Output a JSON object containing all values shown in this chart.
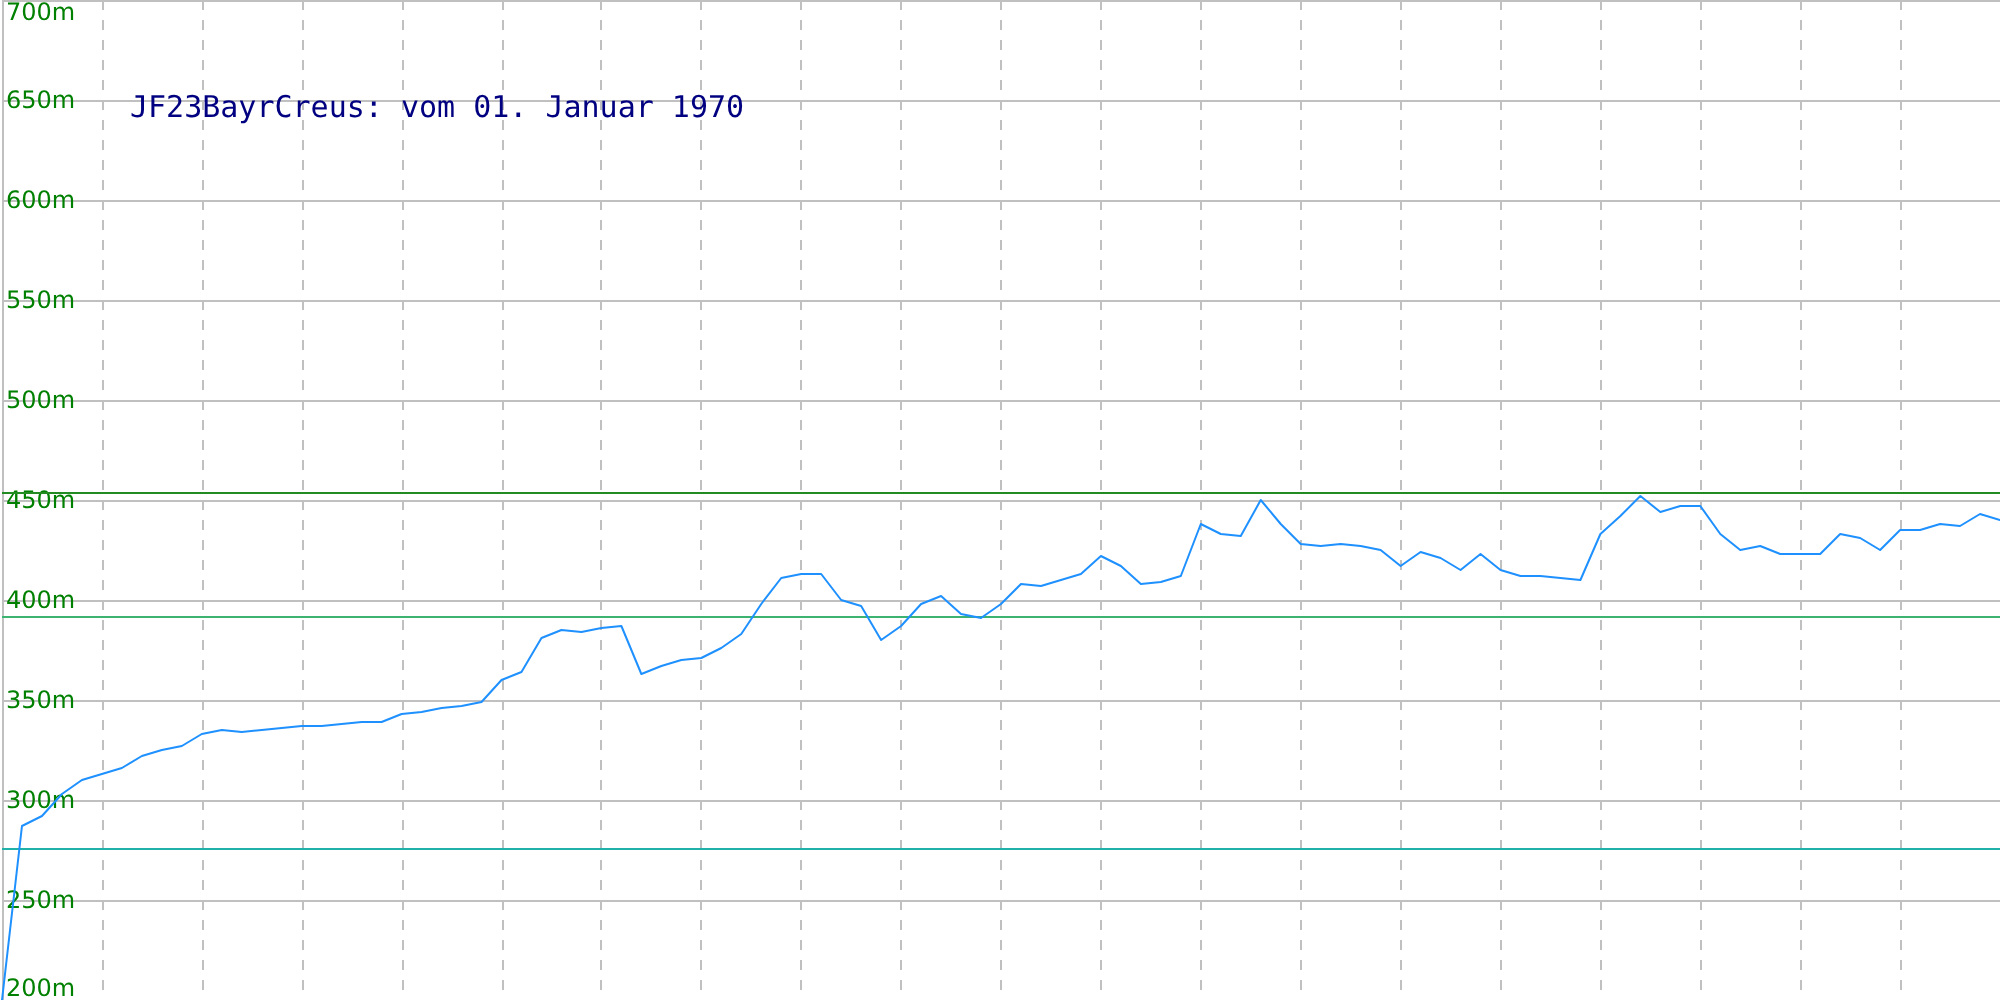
{
  "chart_data": {
    "type": "line",
    "title": "JF23BayrCreus: vom 01. Januar 1970",
    "categories": [
      null,
      null,
      null,
      null,
      null,
      null,
      null,
      null,
      null,
      null,
      null,
      null,
      null,
      null,
      null,
      null,
      null,
      null,
      null,
      null,
      null,
      null,
      null,
      null,
      null,
      null,
      null,
      null,
      null,
      null,
      null,
      null,
      null,
      null,
      null,
      null,
      null,
      null,
      null,
      null,
      null,
      null,
      null,
      null,
      null,
      null,
      null,
      null,
      null,
      null,
      null,
      null,
      null,
      null,
      null,
      null,
      null,
      null,
      null,
      null,
      null,
      null,
      null,
      null,
      null,
      null,
      null,
      null,
      null,
      null,
      null,
      null,
      null,
      null,
      null,
      null,
      null,
      null,
      null,
      null,
      null,
      null,
      null,
      null,
      null,
      null,
      null,
      null,
      null,
      null,
      null,
      null,
      null,
      null,
      null,
      null,
      null,
      null,
      null,
      null,
      null
    ],
    "values": [
      200,
      287,
      292,
      303,
      310,
      313,
      316,
      322,
      325,
      327,
      333,
      335,
      334,
      335,
      336,
      337,
      337,
      338,
      339,
      339,
      343,
      344,
      346,
      347,
      349,
      360,
      364,
      381,
      385,
      384,
      386,
      387,
      363,
      367,
      370,
      371,
      376,
      383,
      398,
      411,
      413,
      413,
      400,
      397,
      380,
      387,
      398,
      402,
      393,
      391,
      398,
      408,
      407,
      410,
      413,
      422,
      417,
      408,
      409,
      412,
      438,
      433,
      432,
      450,
      438,
      428,
      427,
      428,
      427,
      425,
      417,
      424,
      421,
      415,
      423,
      415,
      412,
      412,
      411,
      410,
      433,
      442,
      452,
      444,
      447,
      447,
      433,
      425,
      427,
      423,
      423,
      423,
      433,
      431,
      425,
      435,
      435,
      438,
      437,
      443,
      440
    ],
    "color": "#1e90ff",
    "ylim": [
      200,
      700
    ],
    "yticks": [
      {
        "value": 200,
        "label": "200m"
      },
      {
        "value": 250,
        "label": "250m"
      },
      {
        "value": 300,
        "label": "300m"
      },
      {
        "value": 350,
        "label": "350m"
      },
      {
        "value": 400,
        "label": "400m"
      },
      {
        "value": 450,
        "label": "450m"
      },
      {
        "value": 500,
        "label": "500m"
      },
      {
        "value": 550,
        "label": "550m"
      },
      {
        "value": 600,
        "label": "600m"
      },
      {
        "value": 650,
        "label": "650m"
      },
      {
        "value": 700,
        "label": "700m"
      }
    ],
    "ref_lines": [
      {
        "axis": "y",
        "value": 454,
        "color": "#228b22"
      },
      {
        "axis": "y",
        "value": 392,
        "color": "#3cb371"
      },
      {
        "axis": "y",
        "value": 276,
        "color": "#20b2aa"
      }
    ],
    "grid": true,
    "tick_labels": "y"
  }
}
